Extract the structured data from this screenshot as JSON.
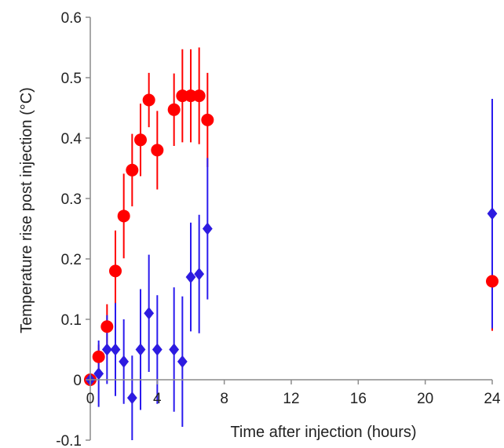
{
  "chart_data": {
    "type": "scatter",
    "title": "",
    "xlabel": "Time after injection (hours)",
    "ylabel": "Temperature rise post injection (°C)",
    "xlim": [
      0,
      24
    ],
    "ylim": [
      -0.1,
      0.6
    ],
    "x_ticks": [
      0,
      4,
      8,
      12,
      16,
      20,
      24
    ],
    "y_ticks": [
      -0.1,
      0,
      0.1,
      0.2,
      0.3,
      0.4,
      0.5,
      0.6
    ],
    "y_tick_labels": [
      "-0.1",
      "0",
      "0.1",
      "0.2",
      "0.3",
      "0.4",
      "0.5",
      "0.6"
    ],
    "grid": false,
    "legend": "none",
    "series": [
      {
        "marker": "circle",
        "color": "#ff0000",
        "error_color": "#ff0000",
        "points": [
          {
            "x": 0,
            "y": 0,
            "err": 0
          },
          {
            "x": 0.5,
            "y": 0.038,
            "err": 0.02
          },
          {
            "x": 1,
            "y": 0.088,
            "err": 0.037
          },
          {
            "x": 1.5,
            "y": 0.18,
            "err": 0.067
          },
          {
            "x": 2,
            "y": 0.271,
            "err": 0.07
          },
          {
            "x": 2.5,
            "y": 0.347,
            "err": 0.06
          },
          {
            "x": 3,
            "y": 0.397,
            "err": 0.06
          },
          {
            "x": 3.5,
            "y": 0.463,
            "err": 0.045
          },
          {
            "x": 4,
            "y": 0.38,
            "err": 0.065
          },
          {
            "x": 5,
            "y": 0.447,
            "err": 0.06
          },
          {
            "x": 5.5,
            "y": 0.47,
            "err": 0.077
          },
          {
            "x": 6,
            "y": 0.47,
            "err": 0.077
          },
          {
            "x": 6.5,
            "y": 0.47,
            "err": 0.08
          },
          {
            "x": 7,
            "y": 0.43,
            "err": 0.078
          },
          {
            "x": 24,
            "y": 0.163,
            "err": 0.082
          }
        ]
      },
      {
        "marker": "diamond",
        "color": "#2d1be0",
        "error_color": "#2a1aee",
        "points": [
          {
            "x": 0,
            "y": 0,
            "err": 0
          },
          {
            "x": 0.5,
            "y": 0.01,
            "err": 0.055
          },
          {
            "x": 1,
            "y": 0.05,
            "err": 0.057
          },
          {
            "x": 1.5,
            "y": 0.05,
            "err": 0.077
          },
          {
            "x": 2,
            "y": 0.03,
            "err": 0.07
          },
          {
            "x": 2.5,
            "y": -0.03,
            "err": 0.07
          },
          {
            "x": 3,
            "y": 0.05,
            "err": 0.1
          },
          {
            "x": 3.5,
            "y": 0.11,
            "err": 0.097
          },
          {
            "x": 4,
            "y": 0.05,
            "err": 0.09
          },
          {
            "x": 5,
            "y": 0.05,
            "err": 0.103
          },
          {
            "x": 5.5,
            "y": 0.03,
            "err": 0.108
          },
          {
            "x": 6,
            "y": 0.17,
            "err": 0.09
          },
          {
            "x": 6.5,
            "y": 0.175,
            "err": 0.098
          },
          {
            "x": 7,
            "y": 0.25,
            "err": 0.117
          },
          {
            "x": 24,
            "y": 0.275,
            "err": 0.19
          }
        ]
      }
    ]
  }
}
